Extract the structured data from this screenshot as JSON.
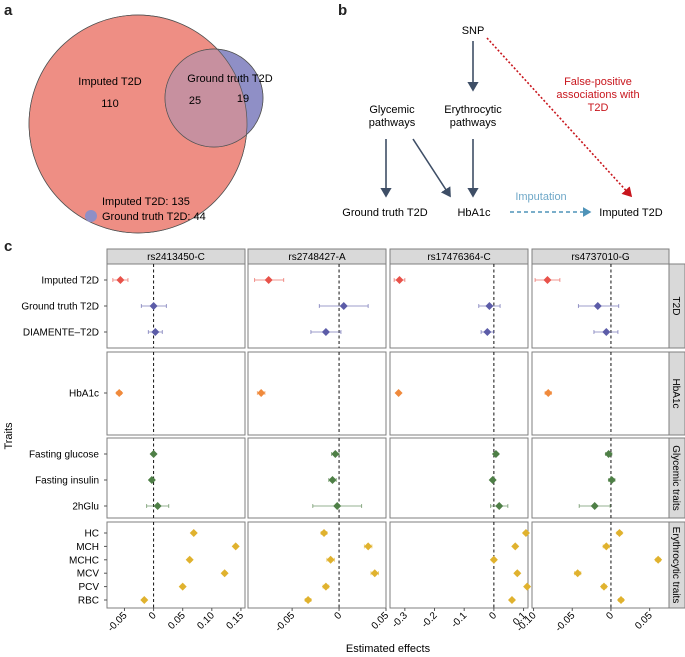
{
  "panel_labels": [
    "a",
    "b",
    "c"
  ],
  "venn": {
    "sets": [
      {
        "name": "Imputed T2D",
        "only": 110,
        "total": 135,
        "color": "#EE8E84",
        "legend": "Imputed T2D: 135"
      },
      {
        "name": "Ground truth T2D",
        "only": 19,
        "total": 44,
        "color": "#8F8FC6",
        "legend": "Ground truth T2D: 44"
      }
    ],
    "overlap": 25,
    "overlap_color": "#C7909F"
  },
  "diagram": {
    "nodes": {
      "snp": "SNP",
      "glycemic": [
        "Glycemic",
        "pathways"
      ],
      "erythrocytic": [
        "Erythrocytic",
        "pathways"
      ],
      "ground_truth": "Ground truth T2D",
      "hba1c": "HbA1c",
      "imputed": "Imputed T2D"
    },
    "false_positive_label": [
      "False-positive",
      "associations with",
      "T2D"
    ],
    "imputation_label": "Imputation",
    "colors": {
      "arrow": "#3E4E66",
      "false_positive": "#C8161D",
      "imputation": "#4F93B8",
      "imputation_text": "#6FA8C8"
    }
  },
  "chart_data": {
    "type": "scatter",
    "subtype": "forest-plot-faceted",
    "xlabel": "Estimated effects",
    "ylabel": "Traits",
    "reference_line_x": 0,
    "grid": false,
    "columns": [
      {
        "snp": "rs2413450-C",
        "xlim": [
          -0.08,
          0.157
        ],
        "ticks": [
          -0.05,
          0,
          0.05,
          0.1,
          0.15
        ],
        "tick_labels": [
          "-0.05",
          "0",
          "0.05",
          "0.10",
          "0.15"
        ]
      },
      {
        "snp": "rs2748427-A",
        "xlim": [
          -0.097,
          0.05
        ],
        "ticks": [
          -0.05,
          0,
          0.05
        ],
        "tick_labels": [
          "-0.05",
          "0",
          "0.05"
        ]
      },
      {
        "snp": "rs17476364-C",
        "xlim": [
          -0.35,
          0.115
        ],
        "ticks": [
          -0.3,
          -0.2,
          -0.1,
          0,
          0.1
        ],
        "tick_labels": [
          "-0.3",
          "-0.2",
          "-0.1",
          "0",
          "0.1"
        ]
      },
      {
        "snp": "rs4737010-G",
        "xlim": [
          -0.102,
          0.075
        ],
        "ticks": [
          -0.1,
          -0.05,
          0,
          0.05
        ],
        "tick_labels": [
          "-0.10",
          "-0.05",
          "0",
          "0.05"
        ]
      }
    ],
    "rows": [
      {
        "group": "T2D",
        "color": "#5C5CA8",
        "traits": [
          "Imputed T2D",
          "Ground truth T2D",
          "DIAMENTE–T2D"
        ],
        "trait_colors": [
          "#E8524A",
          "#5C5CA8",
          "#5C5CA8"
        ]
      },
      {
        "group": "HbA1c",
        "color": "#F08A3C",
        "traits": [
          "HbA1c"
        ],
        "trait_colors": [
          "#F08A3C"
        ]
      },
      {
        "group": "Glycemic traits",
        "color": "#4E7F46",
        "traits": [
          "Fasting glucose",
          "Fasting insulin",
          "2hGlu"
        ],
        "trait_colors": [
          "#4E7F46",
          "#4E7F46",
          "#4E7F46"
        ]
      },
      {
        "group": "Erythrocytic traits",
        "color": "#E0B22E",
        "traits": [
          "HC",
          "MCH",
          "MCHC",
          "MCV",
          "PCV",
          "RBC"
        ],
        "trait_colors": [
          "#E0B22E",
          "#E0B22E",
          "#E0B22E",
          "#E0B22E",
          "#E0B22E",
          "#E0B22E"
        ]
      }
    ],
    "series": [
      {
        "name": "rs2413450-C",
        "points": {
          "Imputed T2D": [
            -0.057,
            -0.07,
            -0.044
          ],
          "Ground truth T2D": [
            0.0,
            -0.021,
            0.022
          ],
          "DIAMENTE–T2D": [
            0.003,
            -0.009,
            0.015
          ],
          "HbA1c": [
            -0.059,
            -0.063,
            -0.055
          ],
          "Fasting glucose": [
            0.0,
            -0.002,
            0.002
          ],
          "Fasting insulin": [
            -0.003,
            -0.006,
            0.0
          ],
          "2hGlu": [
            0.007,
            -0.012,
            0.026
          ],
          "HC": [
            0.069,
            0.066,
            0.072
          ],
          "MCH": [
            0.141,
            0.138,
            0.144
          ],
          "MCHC": [
            0.062,
            0.059,
            0.065
          ],
          "MCV": [
            0.122,
            0.119,
            0.125
          ],
          "PCV": [
            0.05,
            0.047,
            0.053
          ],
          "RBC": [
            -0.016,
            -0.019,
            -0.013
          ]
        }
      },
      {
        "name": "rs2748427-A",
        "points": {
          "Imputed T2D": [
            -0.075,
            -0.09,
            -0.059
          ],
          "Ground truth T2D": [
            0.005,
            -0.021,
            0.031
          ],
          "DIAMENTE–T2D": [
            -0.014,
            -0.03,
            0.002
          ],
          "HbA1c": [
            -0.083,
            -0.087,
            -0.079
          ],
          "Fasting glucose": [
            -0.004,
            -0.008,
            0.0
          ],
          "Fasting insulin": [
            -0.007,
            -0.011,
            -0.003
          ],
          "2hGlu": [
            -0.002,
            -0.028,
            0.024
          ],
          "HC": [
            -0.016,
            -0.019,
            -0.013
          ],
          "MCH": [
            0.031,
            0.027,
            0.035
          ],
          "MCHC": [
            -0.009,
            -0.013,
            -0.005
          ],
          "MCV": [
            0.038,
            0.034,
            0.042
          ],
          "PCV": [
            -0.014,
            -0.017,
            -0.011
          ],
          "RBC": [
            -0.033,
            -0.036,
            -0.03
          ]
        }
      },
      {
        "name": "rs17476364-C",
        "points": {
          "Imputed T2D": [
            -0.318,
            -0.336,
            -0.3
          ],
          "Ground truth T2D": [
            -0.015,
            -0.051,
            0.021
          ],
          "DIAMENTE–T2D": [
            -0.022,
            -0.043,
            -0.001
          ],
          "HbA1c": [
            -0.321,
            -0.326,
            -0.316
          ],
          "Fasting glucose": [
            0.007,
            0.001,
            0.013
          ],
          "Fasting insulin": [
            -0.004,
            -0.01,
            0.002
          ],
          "2hGlu": [
            0.018,
            -0.011,
            0.047
          ],
          "HC": [
            0.108,
            0.102,
            0.114
          ],
          "MCH": [
            0.072,
            0.066,
            0.078
          ],
          "MCHC": [
            0.0,
            -0.006,
            0.006
          ],
          "MCV": [
            0.079,
            0.073,
            0.085
          ],
          "PCV": [
            0.112,
            0.106,
            0.118
          ],
          "RBC": [
            0.061,
            0.055,
            0.067
          ]
        }
      },
      {
        "name": "rs4737010-G",
        "points": {
          "Imputed T2D": [
            -0.082,
            -0.098,
            -0.066
          ],
          "Ground truth T2D": [
            -0.017,
            -0.042,
            0.01
          ],
          "DIAMENTE–T2D": [
            -0.006,
            -0.022,
            0.009
          ],
          "HbA1c": [
            -0.081,
            -0.085,
            -0.077
          ],
          "Fasting glucose": [
            -0.003,
            -0.007,
            0.001
          ],
          "Fasting insulin": [
            0.001,
            -0.003,
            0.005
          ],
          "2hGlu": [
            -0.021,
            -0.041,
            -0.001
          ],
          "HC": [
            0.011,
            0.008,
            0.014
          ],
          "MCH": [
            -0.006,
            -0.01,
            -0.002
          ],
          "MCHC": [
            0.061,
            0.058,
            0.064
          ],
          "MCV": [
            -0.043,
            -0.047,
            -0.039
          ],
          "PCV": [
            -0.009,
            -0.012,
            -0.006
          ],
          "RBC": [
            0.013,
            0.01,
            0.016
          ]
        }
      }
    ],
    "point_format": "[estimate, ci_low, ci_high]"
  }
}
